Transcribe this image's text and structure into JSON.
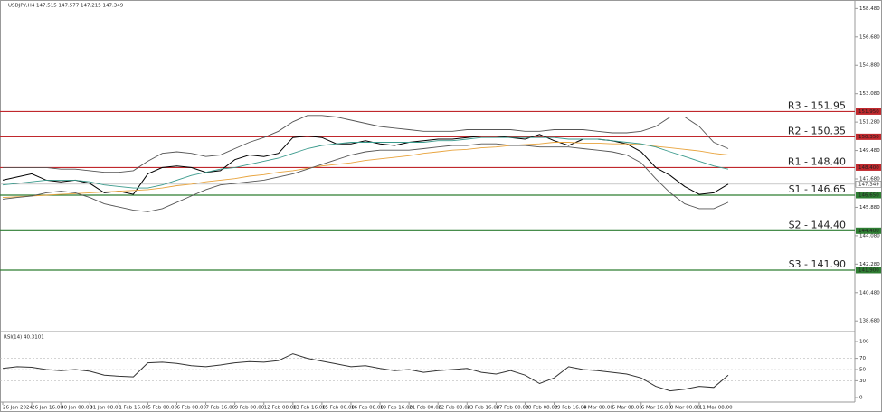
{
  "chart_data": [
    {
      "type": "line",
      "title": "USDJPY,H4 147.515 147.577 147.215 147.349",
      "categories": [
        "26 Jan 2024",
        null,
        "26 Jan 16:00",
        null,
        "30 Jan 00:00",
        null,
        "31 Jan 08:00",
        null,
        "1 Feb 16:00",
        null,
        "5 Feb 00:00",
        null,
        "6 Feb 08:00",
        null,
        "7 Feb 16:00",
        null,
        "9 Feb 00:00",
        null,
        "12 Feb 08:00",
        null,
        "13 Feb 16:00",
        null,
        "15 Feb 00:00",
        null,
        "16 Feb 08:00",
        null,
        "19 Feb 16:00",
        null,
        "21 Feb 00:00",
        null,
        "22 Feb 08:00",
        null,
        "23 Feb 16:00",
        null,
        "27 Feb 00:00",
        null,
        "28 Feb 08:00",
        null,
        "29 Feb 16:00",
        null,
        "4 Mar 00:00",
        null,
        "5 Mar 08:00",
        null,
        "6 Mar 16:00",
        null,
        "8 Mar 00:00",
        null,
        "11 Mar 08:00",
        null,
        null
      ],
      "series": [
        {
          "color": "#000000",
          "values": [
            147.6,
            147.8,
            148.0,
            147.6,
            147.5,
            147.6,
            147.4,
            146.8,
            146.9,
            146.7,
            148.0,
            148.4,
            148.5,
            148.4,
            148.1,
            148.2,
            148.9,
            149.2,
            149.1,
            149.3,
            150.3,
            150.4,
            150.3,
            149.9,
            149.9,
            150.1,
            149.9,
            149.8,
            150.0,
            150.1,
            150.2,
            150.2,
            150.3,
            150.4,
            150.4,
            150.3,
            150.2,
            150.5,
            150.1,
            149.8,
            150.2,
            150.2,
            150.1,
            149.9,
            149.4,
            148.4,
            147.9,
            147.2,
            146.7,
            146.8,
            147.35
          ]
        },
        {
          "color": "#e8a33c",
          "values": [
            146.5,
            146.55,
            146.6,
            146.65,
            146.7,
            146.75,
            146.8,
            146.85,
            146.9,
            146.95,
            147.0,
            147.1,
            147.25,
            147.35,
            147.5,
            147.6,
            147.7,
            147.85,
            147.95,
            148.1,
            148.2,
            148.35,
            148.5,
            148.6,
            148.7,
            148.85,
            148.95,
            149.05,
            149.15,
            149.3,
            149.4,
            149.5,
            149.55,
            149.65,
            149.7,
            149.8,
            149.85,
            149.9,
            150.0,
            150.0,
            149.95,
            149.95,
            149.9,
            149.9,
            149.85,
            149.75,
            149.65,
            149.55,
            149.45,
            149.3,
            149.2
          ]
        },
        {
          "color": "#3a9a8c",
          "values": [
            147.3,
            147.4,
            147.5,
            147.6,
            147.6,
            147.6,
            147.5,
            147.3,
            147.2,
            147.1,
            147.1,
            147.3,
            147.6,
            147.9,
            148.1,
            148.3,
            148.4,
            148.6,
            148.8,
            149.0,
            149.3,
            149.6,
            149.8,
            149.9,
            150.0,
            150.0,
            150.0,
            150.0,
            150.0,
            150.0,
            150.1,
            150.1,
            150.2,
            150.3,
            150.3,
            150.3,
            150.3,
            150.3,
            150.3,
            150.2,
            150.2,
            150.2,
            150.1,
            150.0,
            149.9,
            149.7,
            149.4,
            149.1,
            148.8,
            148.5,
            148.3
          ]
        },
        {
          "color": "#555555",
          "values": [
            148.4,
            148.4,
            148.4,
            148.4,
            148.3,
            148.3,
            148.2,
            148.1,
            148.1,
            148.2,
            148.8,
            149.3,
            149.4,
            149.3,
            149.1,
            149.2,
            149.6,
            150.0,
            150.3,
            150.7,
            151.3,
            151.7,
            151.7,
            151.6,
            151.4,
            151.2,
            151.0,
            150.9,
            150.8,
            150.7,
            150.7,
            150.7,
            150.8,
            150.8,
            150.8,
            150.8,
            150.7,
            150.7,
            150.8,
            150.8,
            150.8,
            150.7,
            150.6,
            150.6,
            150.7,
            151.0,
            151.6,
            151.6,
            151.0,
            150.0,
            149.6
          ]
        },
        {
          "color": "#555555",
          "values": [
            146.4,
            146.5,
            146.6,
            146.8,
            146.9,
            146.8,
            146.5,
            146.1,
            145.9,
            145.7,
            145.6,
            145.8,
            146.2,
            146.6,
            147.0,
            147.3,
            147.4,
            147.5,
            147.6,
            147.8,
            148.0,
            148.3,
            148.6,
            148.9,
            149.2,
            149.4,
            149.5,
            149.5,
            149.5,
            149.6,
            149.7,
            149.8,
            149.8,
            149.9,
            149.9,
            149.8,
            149.8,
            149.7,
            149.7,
            149.7,
            149.6,
            149.5,
            149.4,
            149.2,
            148.7,
            147.7,
            146.8,
            146.1,
            145.8,
            145.8,
            146.2
          ]
        }
      ],
      "levels": [
        {
          "label": "R3 - 151.95",
          "value": 151.95,
          "tick_label": "151.950",
          "color": "#c0282d"
        },
        {
          "label": "R2 - 150.35",
          "value": 150.35,
          "tick_label": "150.350",
          "color": "#c0282d"
        },
        {
          "label": "R1 - 148.40",
          "value": 148.4,
          "tick_label": "148.400",
          "color": "#c0282d"
        },
        {
          "label": "S1 - 146.65",
          "value": 146.65,
          "tick_label": "146.650",
          "color": "#2e7d32"
        },
        {
          "label": "S2 - 144.40",
          "value": 144.4,
          "tick_label": "144.400",
          "color": "#2e7d32"
        },
        {
          "label": "S3 - 141.90",
          "value": 141.9,
          "tick_label": "141.900",
          "color": "#2e7d32"
        }
      ],
      "last_price": 147.349,
      "ylim": [
        138.12,
        158.73
      ],
      "yticks": [
        {
          "value": 138.68,
          "label": "138.680"
        },
        {
          "value": 140.48,
          "label": "140.480"
        },
        {
          "value": 142.28,
          "label": "142.280"
        },
        {
          "value": 144.08,
          "label": "144.080"
        },
        {
          "value": 145.88,
          "label": "145.880"
        },
        {
          "value": 147.68,
          "label": "147.680"
        },
        {
          "value": 149.48,
          "label": "149.480"
        },
        {
          "value": 151.28,
          "label": "151.280"
        },
        {
          "value": 153.08,
          "label": "153.080"
        },
        {
          "value": 154.88,
          "label": "154.880"
        },
        {
          "value": 156.68,
          "label": "156.680"
        },
        {
          "value": 158.48,
          "label": "158.480"
        }
      ]
    },
    {
      "type": "line",
      "title": "RSI(14) 40.3101",
      "series": [
        {
          "color": "#333333",
          "values": [
            52,
            55,
            54,
            50,
            48,
            50,
            47,
            40,
            38,
            37,
            62,
            63,
            61,
            57,
            55,
            58,
            62,
            64,
            63,
            66,
            78,
            70,
            65,
            60,
            55,
            57,
            52,
            48,
            50,
            45,
            48,
            50,
            52,
            45,
            42,
            48,
            40,
            25,
            35,
            55,
            50,
            48,
            45,
            42,
            35,
            20,
            12,
            15,
            20,
            18,
            40
          ]
        }
      ],
      "ylim": [
        0,
        100
      ],
      "yticks": [
        0,
        30,
        50,
        70,
        100
      ]
    }
  ]
}
